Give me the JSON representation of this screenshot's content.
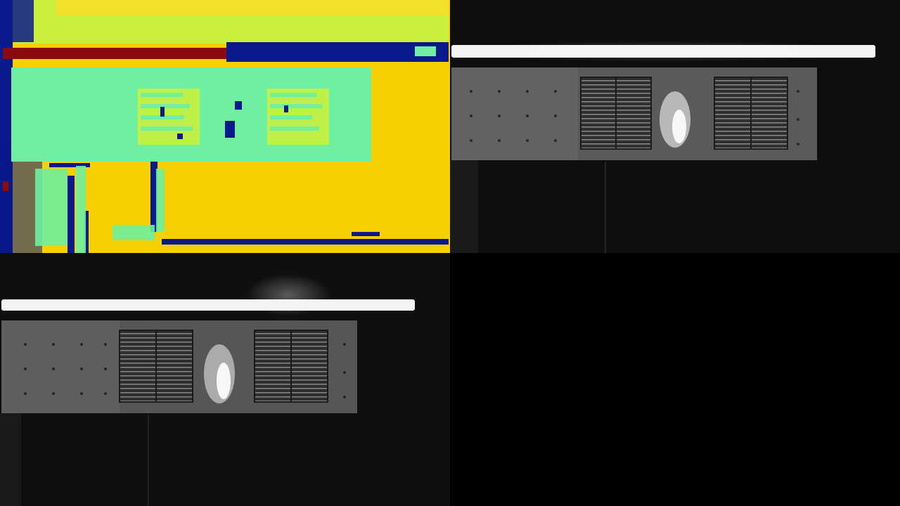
{
  "layout": {
    "panes": [
      {
        "id": "depth",
        "kind": "depth-colormap"
      },
      {
        "id": "cam1",
        "kind": "grayscale-camera"
      },
      {
        "id": "cam2",
        "kind": "grayscale-camera"
      },
      {
        "id": "empty",
        "kind": "blank"
      }
    ]
  },
  "colors": {
    "depth_near": "#0a1a8c",
    "depth_panel": "#6ef0a0",
    "depth_band": "#c8f03c",
    "depth_far": "#f6d000",
    "depth_invalid": "#8b0a0a",
    "camera_background": "#0e0e0e",
    "light_bar": "#f4f4f4"
  },
  "icons": []
}
